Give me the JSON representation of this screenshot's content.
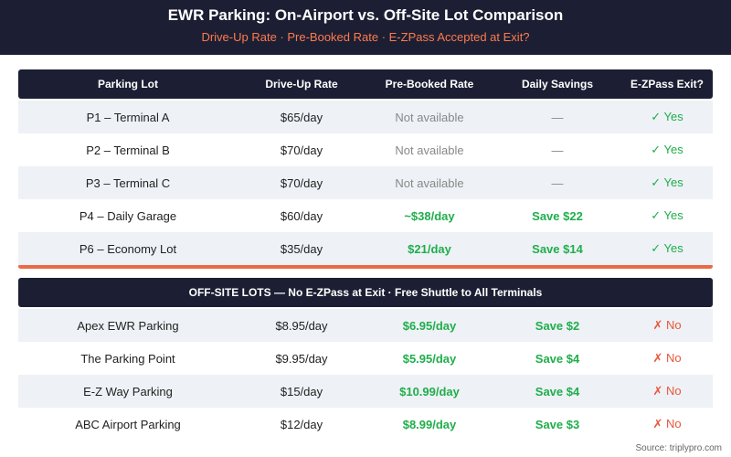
{
  "header": {
    "title": "EWR Parking: On-Airport vs. Off-Site Lot Comparison",
    "subtitle": "Drive-Up Rate · Pre-Booked Rate · E-ZPass Accepted at Exit?"
  },
  "table": {
    "columns": [
      "Parking Lot",
      "Drive-Up Rate",
      "Pre-Booked Rate",
      "Daily Savings",
      "E-ZPass Exit?"
    ],
    "rows": [
      [
        "P1 – Terminal A",
        "$65/day",
        "Not available",
        "—",
        "✓ Yes"
      ],
      [
        "P2 – Terminal B",
        "$70/day",
        "Not available",
        "—",
        "✓ Yes"
      ],
      [
        "P3 – Terminal C",
        "$70/day",
        "Not available",
        "—",
        "✓ Yes"
      ],
      [
        "P4 – Daily Garage",
        "$60/day",
        "~$38/day",
        "Save $22",
        "✓ Yes"
      ],
      [
        "P6 – Economy Lot",
        "$35/day",
        "$21/day",
        "Save $14",
        "✓ Yes"
      ]
    ]
  },
  "offsite": {
    "heading": "OFF-SITE LOTS — No E-ZPass at Exit · Free Shuttle to All Terminals",
    "rows": [
      [
        "Apex EWR Parking",
        "$8.95/day",
        "$6.95/day",
        "Save $2",
        "✗ No"
      ],
      [
        "The Parking Point",
        "$9.95/day",
        "$5.95/day",
        "Save $4",
        "✗ No"
      ],
      [
        "E-Z Way Parking",
        "$15/day",
        "$10.99/day",
        "Save $4",
        "✗ No"
      ],
      [
        "ABC Airport Parking",
        "$12/day",
        "$8.99/day",
        "Save $3",
        "✗ No"
      ]
    ]
  },
  "source": "Source: triplypro.com"
}
